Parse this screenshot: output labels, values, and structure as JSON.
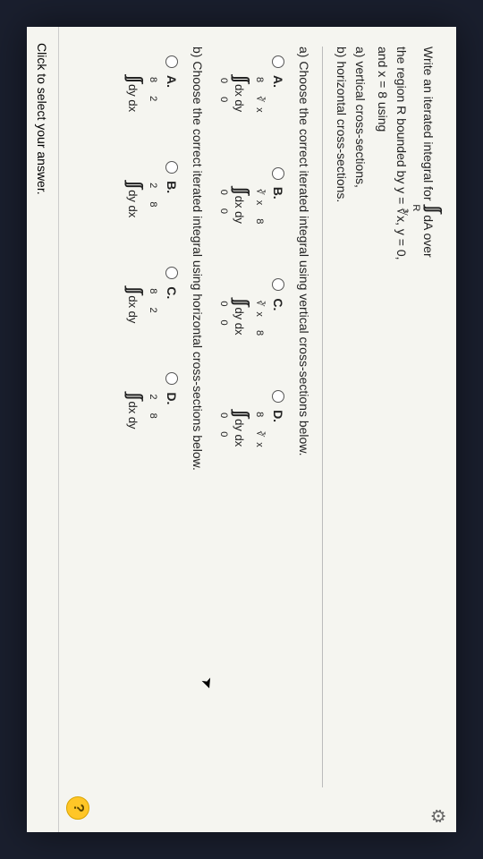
{
  "gear_icon": "⚙",
  "cursor_icon": "➤",
  "prompt": {
    "line1_pre": "Write an iterated integral for ",
    "line1_int_syms": "∫∫",
    "line1_int_sub": "R",
    "line1_post": " dA over",
    "line2": "the region R bounded by y = ∛x, y = 0,",
    "line3": "and x = 8 using",
    "part_a": "a) vertical cross-sections,",
    "part_b": "b) horizontal cross-sections."
  },
  "section_a": {
    "title": "a) Choose the correct iterated integral using vertical cross-sections below.",
    "options": [
      {
        "letter": "A.",
        "upper": "8 ∛x",
        "syms": "∫∫",
        "lower": "0 0",
        "diff": "dx dy"
      },
      {
        "letter": "B.",
        "upper": "∛x 8",
        "syms": "∫∫",
        "lower": "0 0",
        "diff": "dx dy"
      },
      {
        "letter": "C.",
        "upper": "∛x 8",
        "syms": "∫∫",
        "lower": "0 0",
        "diff": "dy dx"
      },
      {
        "letter": "D.",
        "upper": "8 ∛x",
        "syms": "∫∫",
        "lower": "0 0",
        "diff": "dy dx"
      }
    ]
  },
  "section_b": {
    "title": "b) Choose the correct iterated integral using horizontal cross-sections below.",
    "options": [
      {
        "letter": "A.",
        "upper": "8 2",
        "syms": "∫∫",
        "lower": "",
        "diff": "dy dx"
      },
      {
        "letter": "B.",
        "upper": "2 8",
        "syms": "∫∫",
        "lower": "",
        "diff": "dy dx"
      },
      {
        "letter": "C.",
        "upper": "8 2",
        "syms": "∫∫",
        "lower": "",
        "diff": "dx dy"
      },
      {
        "letter": "D.",
        "upper": "2 8",
        "syms": "∫∫",
        "lower": "",
        "diff": "dx dy"
      }
    ]
  },
  "footer": "Click to select your answer.",
  "help": "?",
  "colors": {
    "page_bg": "#f5f5f0",
    "body_bg": "#1a1f2e",
    "text": "#222",
    "divider": "#bbb",
    "help_bg": "#ffc627"
  }
}
